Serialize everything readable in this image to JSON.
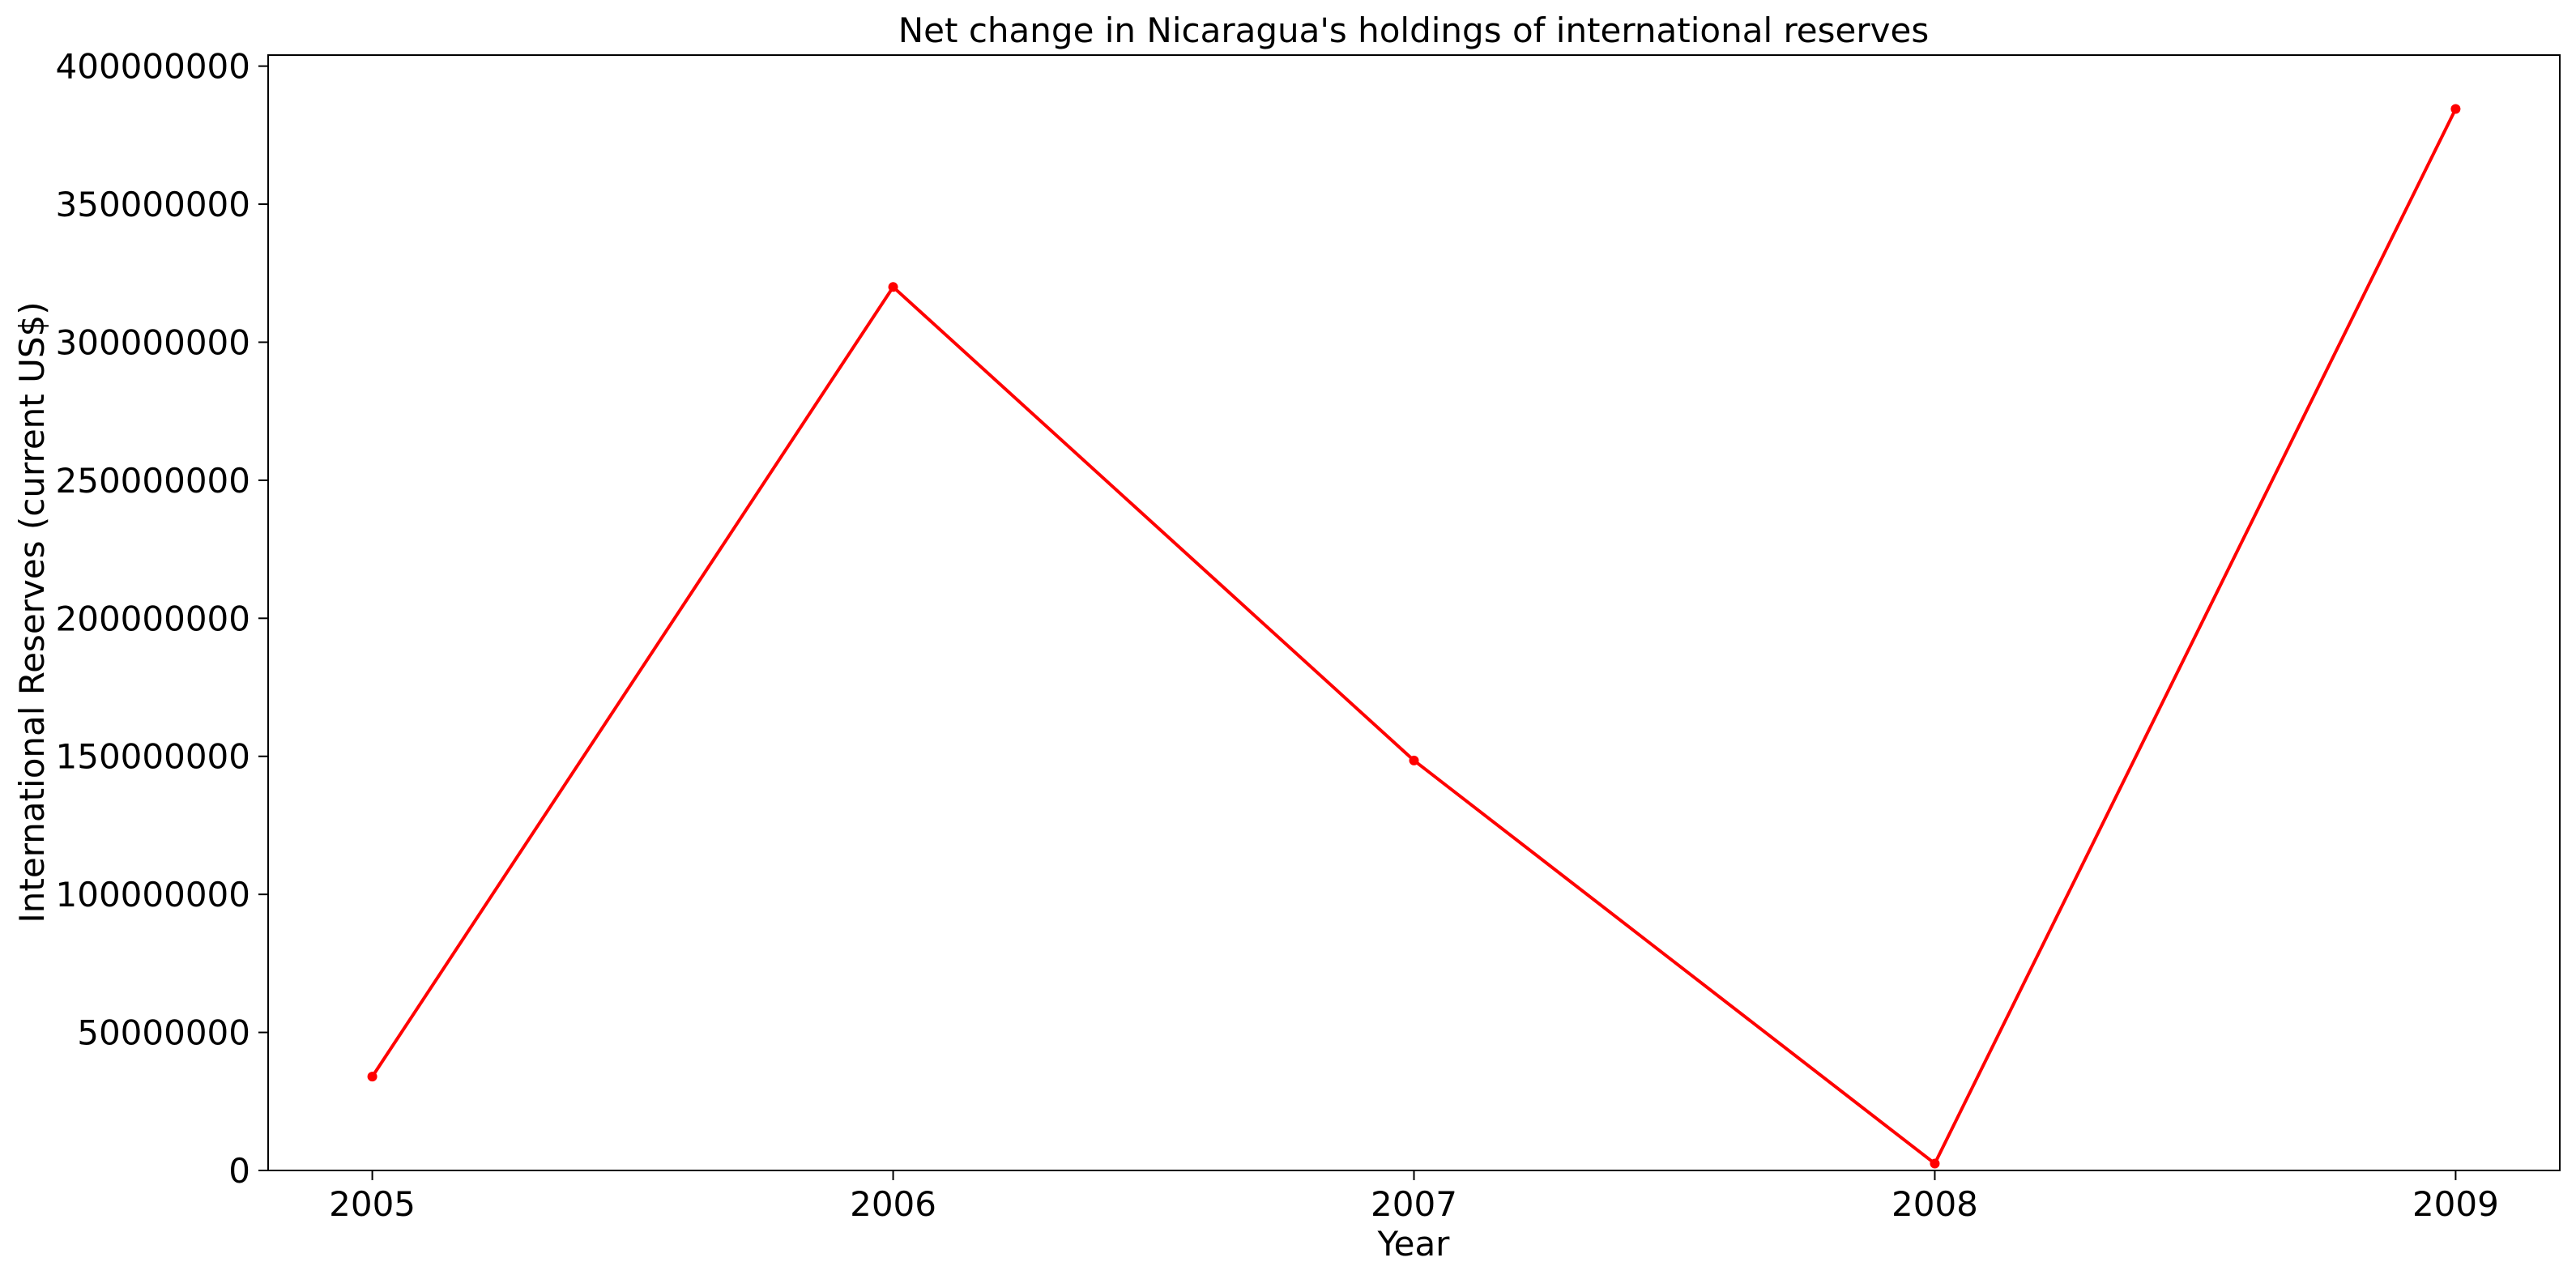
{
  "chart_data": {
    "type": "line",
    "title": "Net change in Nicaragua's holdings of international reserves",
    "xlabel": "Year",
    "ylabel": "International Reserves (current US$)",
    "x": [
      "2005",
      "2006",
      "2007",
      "2008",
      "2009"
    ],
    "series": [
      {
        "color": "#ff0000",
        "marker": "circle",
        "values": [
          34000000,
          320000000,
          148500000,
          2500000,
          384500000
        ]
      }
    ],
    "x_tick_labels": [
      "2005",
      "2006",
      "2007",
      "2008",
      "2009"
    ],
    "y_ticks": [
      0,
      50000000,
      100000000,
      150000000,
      200000000,
      250000000,
      300000000,
      350000000,
      400000000
    ],
    "y_tick_labels": [
      "0",
      "50000000",
      "100000000",
      "150000000",
      "200000000",
      "250000000",
      "300000000",
      "350000000",
      "400000000"
    ],
    "ylim": [
      0,
      404000000
    ],
    "xlim": [
      2004.8,
      2009.2
    ],
    "grid": false,
    "legend": "none"
  }
}
